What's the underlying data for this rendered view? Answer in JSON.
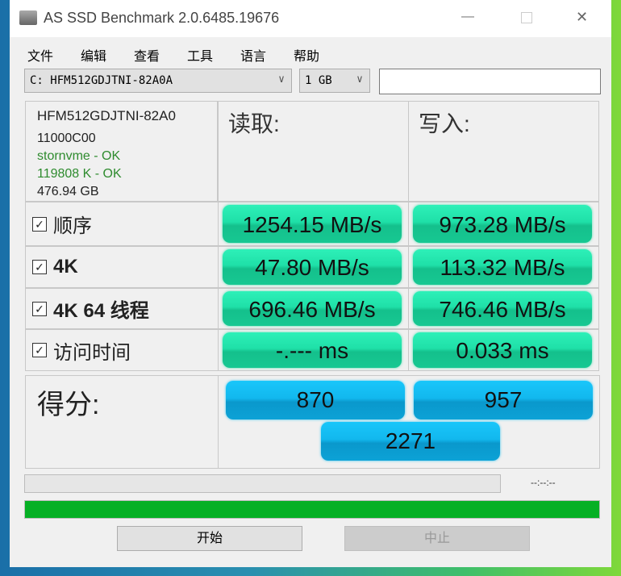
{
  "window": {
    "title": "AS SSD Benchmark 2.0.6485.19676",
    "minimize": "—",
    "close": "✕"
  },
  "menu": [
    "文件",
    "编辑",
    "查看",
    "工具",
    "语言",
    "帮助"
  ],
  "drive_select": "C: HFM512GDJTNI-82A0A",
  "size_select": "1 GB",
  "name_input": "",
  "info": {
    "model": "HFM512GDJTNI-82A0",
    "firmware": "11000C00",
    "driver": "stornvme - OK",
    "alignment": "119808 K - OK",
    "capacity": "476.94 GB"
  },
  "headers": {
    "read": "读取:",
    "write": "写入:"
  },
  "rows": [
    {
      "label": "顺序",
      "read": "1254.15 MB/s",
      "write": "973.28 MB/s",
      "checked": true
    },
    {
      "label": "4K",
      "read": "47.80 MB/s",
      "write": "113.32 MB/s",
      "checked": true
    },
    {
      "label": "4K 64 线程",
      "read": "696.46 MB/s",
      "write": "746.46 MB/s",
      "checked": true
    },
    {
      "label": "访问时间",
      "read": "-.--- ms",
      "write": "0.033 ms",
      "checked": true
    }
  ],
  "score": {
    "label": "得分:",
    "read": "870",
    "write": "957",
    "total": "2271"
  },
  "progress": {
    "time": "--:--:--",
    "overall_percent": 100
  },
  "buttons": {
    "start": "开始",
    "stop": "中止"
  },
  "colors": {
    "result": "#1fe0a8",
    "score": "#12b8ee",
    "progress": "#06b025",
    "ok_text": "#2e8b2e"
  }
}
